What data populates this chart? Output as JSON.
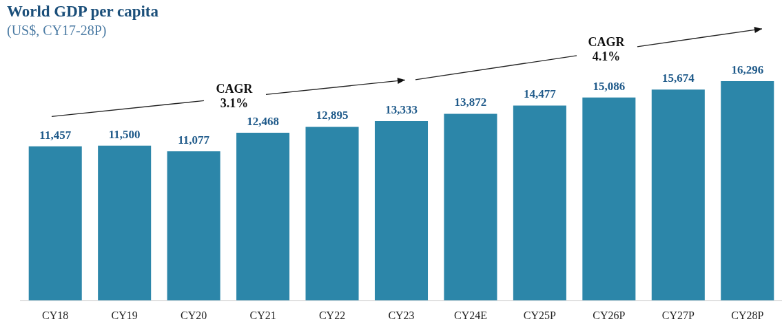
{
  "chart_data": {
    "type": "bar",
    "title": "World GDP per capita",
    "subtitle": "(US$, CY17-28P)",
    "categories": [
      "CY18",
      "CY19",
      "CY20",
      "CY21",
      "CY22",
      "CY23",
      "CY24E",
      "CY25P",
      "CY26P",
      "CY27P",
      "CY28P"
    ],
    "values": [
      11457,
      11500,
      11077,
      12468,
      12895,
      13333,
      13872,
      14477,
      15086,
      15674,
      16296
    ],
    "value_labels": [
      "11,457",
      "11,500",
      "11,077",
      "12,468",
      "12,895",
      "13,333",
      "13,872",
      "14,477",
      "15,086",
      "15,674",
      "16,296"
    ],
    "color": "#2c86a9",
    "annotations": [
      "CAGR\n3.1%",
      "CAGR\n4.1%"
    ]
  }
}
